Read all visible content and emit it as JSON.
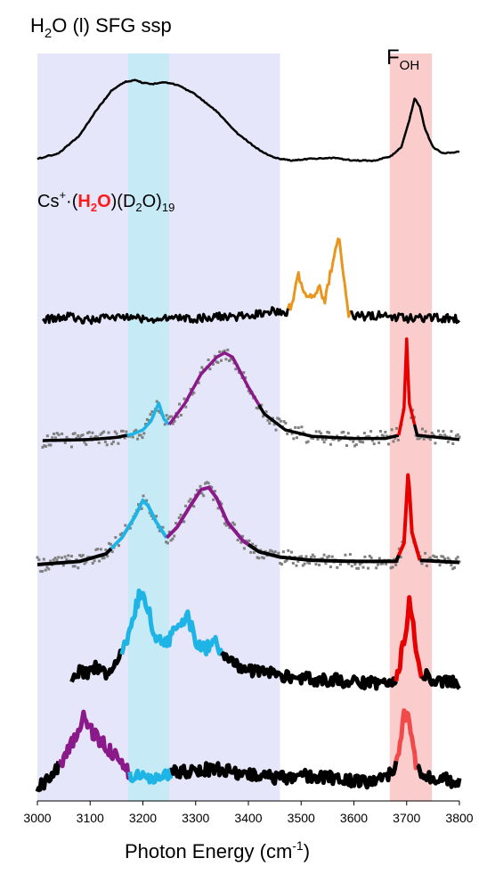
{
  "chart_data": {
    "type": "line",
    "title_main": "H",
    "title_sub": "2",
    "title_rest": "O (l) SFG ssp",
    "xlabel_main": "Photon Energy (cm",
    "xlabel_sup": "-1",
    "xlabel_close": ")",
    "xlim": [
      3000,
      3800
    ],
    "xticks": [
      "3000",
      "3100",
      "3200",
      "3300",
      "3400",
      "3500",
      "3600",
      "3700",
      "3800"
    ],
    "bands": [
      {
        "name": "lavender",
        "x0": 3000,
        "x1": 3460,
        "color": "#e6e6fa"
      },
      {
        "name": "cyan",
        "x0": 3172,
        "x1": 3250,
        "color": "#bfeaf5"
      },
      {
        "name": "pink",
        "x0": 3668,
        "x1": 3748,
        "color": "#f9c3c3"
      }
    ],
    "foh_label": {
      "main": "F",
      "sub": "OH"
    },
    "cluster_label": {
      "prefix": "Cs",
      "sup": "+",
      "dot": "·(",
      "hl_main": "H",
      "hl_sub": "2",
      "hl_rest": "O",
      "mid": ")(D",
      "sub2": "2",
      "rest": "O)",
      "sub3": "19",
      "highlight_color": "#ff1a1a"
    },
    "colors": {
      "black": "#000000",
      "orange": "#e8961e",
      "purple": "#8a1a8a",
      "cyan": "#1eb4e6",
      "red": "#e60000",
      "lightred": "#f04a4a",
      "gray": "#808080"
    },
    "series": [
      {
        "points": [
          [
            3000,
            0.02
          ],
          [
            3040,
            0.08
          ],
          [
            3080,
            0.28
          ],
          [
            3110,
            0.55
          ],
          [
            3140,
            0.78
          ],
          [
            3165,
            0.88
          ],
          [
            3185,
            0.9
          ],
          [
            3200,
            0.87
          ],
          [
            3220,
            0.86
          ],
          [
            3240,
            0.88
          ],
          [
            3265,
            0.85
          ],
          [
            3300,
            0.74
          ],
          [
            3340,
            0.55
          ],
          [
            3380,
            0.3
          ],
          [
            3420,
            0.12
          ],
          [
            3450,
            0.03
          ],
          [
            3480,
            0.0
          ],
          [
            3520,
            0.02
          ],
          [
            3560,
            0.03
          ],
          [
            3600,
            0.0
          ],
          [
            3640,
            0.0
          ],
          [
            3670,
            0.05
          ],
          [
            3690,
            0.15
          ],
          [
            3705,
            0.45
          ],
          [
            3715,
            0.7
          ],
          [
            3725,
            0.6
          ],
          [
            3735,
            0.35
          ],
          [
            3750,
            0.15
          ],
          [
            3770,
            0.08
          ],
          [
            3800,
            0.1
          ]
        ]
      },
      {
        "points": [
          [
            3010,
            0.02
          ],
          [
            3060,
            0.05
          ],
          [
            3100,
            0.01
          ],
          [
            3150,
            0.06
          ],
          [
            3200,
            0.02
          ],
          [
            3250,
            0.05
          ],
          [
            3300,
            0.03
          ],
          [
            3350,
            0.06
          ],
          [
            3400,
            0.05
          ],
          [
            3440,
            0.12
          ],
          [
            3470,
            0.08
          ],
          [
            3480,
            0.18
          ],
          [
            3490,
            0.4
          ],
          [
            3495,
            0.55
          ],
          [
            3505,
            0.35
          ],
          [
            3520,
            0.3
          ],
          [
            3535,
            0.38
          ],
          [
            3545,
            0.25
          ],
          [
            3555,
            0.55
          ],
          [
            3565,
            0.85
          ],
          [
            3572,
            0.95
          ],
          [
            3580,
            0.5
          ],
          [
            3590,
            0.1
          ],
          [
            3600,
            0.05
          ],
          [
            3650,
            0.07
          ],
          [
            3700,
            0.03
          ],
          [
            3750,
            0.04
          ],
          [
            3800,
            0.02
          ]
        ]
      },
      {
        "points": [
          [
            3010,
            0.0
          ],
          [
            3100,
            0.01
          ],
          [
            3150,
            0.03
          ],
          [
            3180,
            0.06
          ],
          [
            3200,
            0.1
          ],
          [
            3215,
            0.18
          ],
          [
            3230,
            0.35
          ],
          [
            3240,
            0.2
          ],
          [
            3250,
            0.15
          ],
          [
            3280,
            0.35
          ],
          [
            3310,
            0.62
          ],
          [
            3340,
            0.78
          ],
          [
            3355,
            0.82
          ],
          [
            3370,
            0.78
          ],
          [
            3400,
            0.5
          ],
          [
            3430,
            0.25
          ],
          [
            3470,
            0.1
          ],
          [
            3520,
            0.04
          ],
          [
            3600,
            0.02
          ],
          [
            3660,
            0.02
          ],
          [
            3685,
            0.05
          ],
          [
            3695,
            0.3
          ],
          [
            3700,
            0.95
          ],
          [
            3705,
            0.35
          ],
          [
            3720,
            0.05
          ],
          [
            3800,
            0.01
          ]
        ]
      },
      {
        "points": [
          [
            3000,
            0.0
          ],
          [
            3080,
            0.03
          ],
          [
            3130,
            0.1
          ],
          [
            3160,
            0.25
          ],
          [
            3185,
            0.45
          ],
          [
            3200,
            0.6
          ],
          [
            3210,
            0.55
          ],
          [
            3225,
            0.4
          ],
          [
            3245,
            0.25
          ],
          [
            3265,
            0.35
          ],
          [
            3290,
            0.55
          ],
          [
            3310,
            0.7
          ],
          [
            3325,
            0.72
          ],
          [
            3340,
            0.62
          ],
          [
            3360,
            0.4
          ],
          [
            3390,
            0.22
          ],
          [
            3420,
            0.12
          ],
          [
            3460,
            0.07
          ],
          [
            3520,
            0.04
          ],
          [
            3600,
            0.03
          ],
          [
            3680,
            0.03
          ],
          [
            3695,
            0.2
          ],
          [
            3703,
            0.88
          ],
          [
            3710,
            0.3
          ],
          [
            3725,
            0.04
          ],
          [
            3800,
            0.02
          ]
        ]
      },
      {
        "points": [
          [
            3065,
            0.05
          ],
          [
            3080,
            0.15
          ],
          [
            3095,
            0.1
          ],
          [
            3110,
            0.18
          ],
          [
            3130,
            0.12
          ],
          [
            3155,
            0.25
          ],
          [
            3175,
            0.5
          ],
          [
            3195,
            0.85
          ],
          [
            3210,
            0.7
          ],
          [
            3225,
            0.42
          ],
          [
            3245,
            0.38
          ],
          [
            3265,
            0.55
          ],
          [
            3285,
            0.62
          ],
          [
            3300,
            0.42
          ],
          [
            3320,
            0.35
          ],
          [
            3340,
            0.4
          ],
          [
            3360,
            0.22
          ],
          [
            3380,
            0.18
          ],
          [
            3420,
            0.14
          ],
          [
            3460,
            0.1
          ],
          [
            3520,
            0.07
          ],
          [
            3580,
            0.05
          ],
          [
            3640,
            0.04
          ],
          [
            3680,
            0.05
          ],
          [
            3695,
            0.4
          ],
          [
            3705,
            0.75
          ],
          [
            3715,
            0.45
          ],
          [
            3725,
            0.12
          ],
          [
            3760,
            0.05
          ],
          [
            3800,
            0.04
          ]
        ]
      },
      {
        "points": [
          [
            3000,
            0.05
          ],
          [
            3030,
            0.15
          ],
          [
            3055,
            0.35
          ],
          [
            3075,
            0.55
          ],
          [
            3090,
            0.72
          ],
          [
            3105,
            0.55
          ],
          [
            3125,
            0.45
          ],
          [
            3145,
            0.35
          ],
          [
            3165,
            0.22
          ],
          [
            3180,
            0.15
          ],
          [
            3200,
            0.18
          ],
          [
            3220,
            0.12
          ],
          [
            3240,
            0.14
          ],
          [
            3260,
            0.18
          ],
          [
            3300,
            0.2
          ],
          [
            3340,
            0.22
          ],
          [
            3380,
            0.18
          ],
          [
            3420,
            0.16
          ],
          [
            3460,
            0.13
          ],
          [
            3500,
            0.15
          ],
          [
            3540,
            0.14
          ],
          [
            3580,
            0.12
          ],
          [
            3620,
            0.1
          ],
          [
            3660,
            0.12
          ],
          [
            3685,
            0.3
          ],
          [
            3695,
            0.75
          ],
          [
            3705,
            0.65
          ],
          [
            3720,
            0.2
          ],
          [
            3760,
            0.12
          ],
          [
            3800,
            0.1
          ]
        ]
      }
    ],
    "fits": [
      {
        "name": "blue-fit-1",
        "x": [
          3170,
          3250
        ],
        "color": "cyan"
      },
      {
        "name": "purple-fit-1",
        "x": [
          3255,
          3420
        ],
        "color": "purple"
      },
      {
        "name": "red-fit-1",
        "x": [
          3688,
          3712
        ],
        "color": "red"
      },
      {
        "name": "blue-fit-2",
        "x": [
          3140,
          3245
        ],
        "color": "cyan"
      },
      {
        "name": "purple-fit-2",
        "x": [
          3245,
          3400
        ],
        "color": "purple"
      },
      {
        "name": "red-fit-2",
        "x": [
          3685,
          3725
        ],
        "color": "red"
      }
    ]
  }
}
